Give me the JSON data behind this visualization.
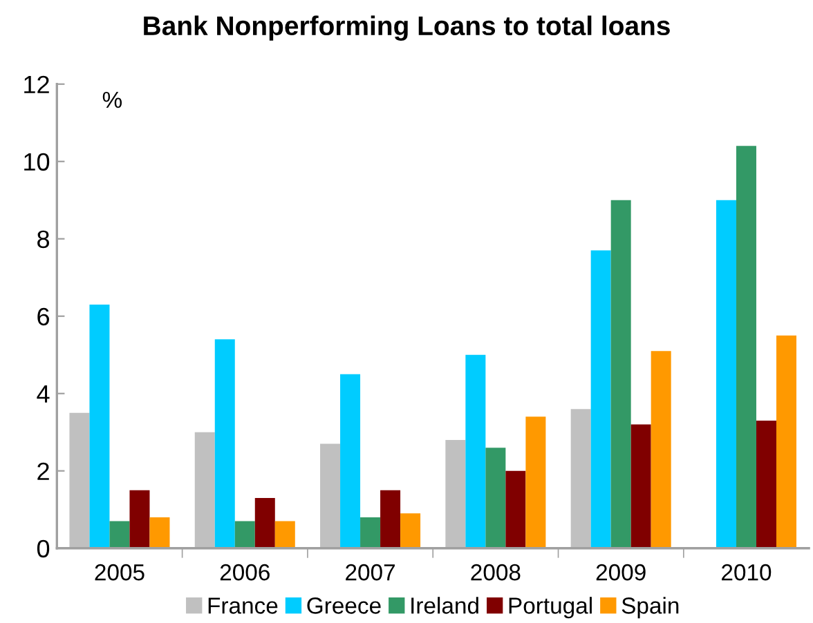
{
  "chart_data": {
    "type": "bar",
    "title": "Bank Nonperforming Loans to total loans",
    "ylabel": "%",
    "categories": [
      "2005",
      "2006",
      "2007",
      "2008",
      "2009",
      "2010"
    ],
    "series": [
      {
        "name": "France",
        "color": "#c0c0c0",
        "values": [
          3.5,
          3.0,
          2.7,
          2.8,
          3.6,
          null
        ]
      },
      {
        "name": "Greece",
        "color": "#00ccff",
        "values": [
          6.3,
          5.4,
          4.5,
          5.0,
          7.7,
          9.0
        ]
      },
      {
        "name": "Ireland",
        "color": "#339966",
        "values": [
          0.7,
          0.7,
          0.8,
          2.6,
          9.0,
          10.4
        ]
      },
      {
        "name": "Portugal",
        "color": "#800000",
        "values": [
          1.5,
          1.3,
          1.5,
          2.0,
          3.2,
          3.3
        ]
      },
      {
        "name": "Spain",
        "color": "#ff9900",
        "values": [
          0.8,
          0.7,
          0.9,
          3.4,
          5.1,
          5.5
        ]
      }
    ],
    "ylim": [
      0,
      12
    ],
    "yticks": [
      0,
      2,
      4,
      6,
      8,
      10,
      12
    ],
    "grid": false,
    "legend": "bottom"
  }
}
